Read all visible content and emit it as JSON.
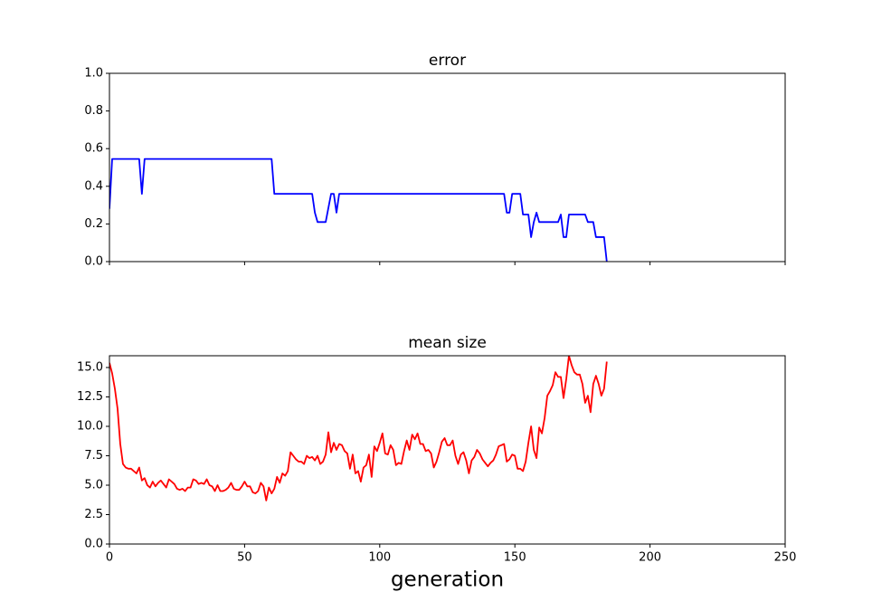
{
  "chart_data": [
    {
      "type": "line",
      "title": "error",
      "x": [
        0,
        1,
        11,
        12,
        13,
        60,
        61,
        75,
        76,
        77,
        80,
        82,
        83,
        84,
        85,
        146,
        147,
        148,
        149,
        152,
        153,
        155,
        156,
        157,
        158,
        159,
        166,
        167,
        168,
        169,
        170,
        176,
        177,
        179,
        180,
        183,
        184
      ],
      "series": [
        {
          "name": "error",
          "color": "#0000ff",
          "values": [
            0.28,
            0.545,
            0.545,
            0.36,
            0.545,
            0.545,
            0.36,
            0.36,
            0.26,
            0.21,
            0.21,
            0.36,
            0.36,
            0.26,
            0.36,
            0.36,
            0.26,
            0.26,
            0.36,
            0.36,
            0.25,
            0.25,
            0.13,
            0.21,
            0.26,
            0.21,
            0.21,
            0.25,
            0.13,
            0.13,
            0.25,
            0.25,
            0.21,
            0.21,
            0.13,
            0.13,
            0.0
          ]
        }
      ],
      "xlim": [
        0,
        250
      ],
      "xticks": [
        0,
        50,
        100,
        150,
        200,
        250
      ],
      "ylim": [
        0,
        1
      ],
      "yticks": [
        {
          "value": 0,
          "label": "0.0"
        },
        {
          "value": 0.2,
          "label": "0.2"
        },
        {
          "value": 0.4,
          "label": "0.4"
        },
        {
          "value": 0.6,
          "label": "0.6"
        },
        {
          "value": 0.8,
          "label": "0.8"
        },
        {
          "value": 1,
          "label": "1.0"
        }
      ]
    },
    {
      "type": "line",
      "title": "mean size",
      "x_label": "generation",
      "x": [
        0,
        1,
        2,
        3,
        4,
        5,
        6,
        7,
        8,
        9,
        10,
        11,
        12,
        13,
        14,
        15,
        16,
        17,
        18,
        19,
        20,
        21,
        22,
        23,
        24,
        25,
        26,
        27,
        28,
        29,
        30,
        31,
        32,
        33,
        34,
        35,
        36,
        37,
        38,
        39,
        40,
        41,
        42,
        43,
        44,
        45,
        46,
        47,
        48,
        49,
        50,
        51,
        52,
        53,
        54,
        55,
        56,
        57,
        58,
        59,
        60,
        61,
        62,
        63,
        64,
        65,
        66,
        67,
        68,
        69,
        70,
        71,
        72,
        73,
        74,
        75,
        76,
        77,
        78,
        79,
        80,
        81,
        82,
        83,
        84,
        85,
        86,
        87,
        88,
        89,
        90,
        91,
        92,
        93,
        94,
        95,
        96,
        97,
        98,
        99,
        100,
        101,
        102,
        103,
        104,
        105,
        106,
        107,
        108,
        109,
        110,
        111,
        112,
        113,
        114,
        115,
        116,
        117,
        118,
        119,
        120,
        121,
        122,
        123,
        124,
        125,
        126,
        127,
        128,
        129,
        130,
        131,
        132,
        133,
        134,
        135,
        136,
        137,
        138,
        139,
        140,
        141,
        142,
        143,
        144,
        145,
        146,
        147,
        148,
        149,
        150,
        151,
        152,
        153,
        154,
        155,
        156,
        157,
        158,
        159,
        160,
        161,
        162,
        163,
        164,
        165,
        166,
        167,
        168,
        169,
        170,
        171,
        172,
        173,
        174,
        175,
        176,
        177,
        178,
        179,
        180,
        181,
        182,
        183,
        184
      ],
      "series": [
        {
          "name": "mean size",
          "color": "#ff0000",
          "values": [
            15.4,
            14.5,
            13.2,
            11.5,
            8.5,
            6.8,
            6.5,
            6.4,
            6.4,
            6.2,
            6.0,
            6.5,
            5.4,
            5.6,
            5.0,
            4.8,
            5.3,
            4.9,
            5.2,
            5.4,
            5.1,
            4.8,
            5.5,
            5.3,
            5.1,
            4.7,
            4.6,
            4.7,
            4.5,
            4.8,
            4.8,
            5.5,
            5.4,
            5.1,
            5.2,
            5.1,
            5.5,
            5.0,
            4.9,
            4.5,
            5.0,
            4.5,
            4.5,
            4.6,
            4.8,
            5.2,
            4.7,
            4.6,
            4.6,
            4.9,
            5.3,
            4.9,
            4.9,
            4.4,
            4.3,
            4.5,
            5.2,
            4.9,
            3.7,
            4.8,
            4.3,
            4.7,
            5.7,
            5.2,
            6.0,
            5.8,
            6.2,
            7.8,
            7.5,
            7.2,
            7.0,
            7.0,
            6.8,
            7.5,
            7.3,
            7.4,
            7.1,
            7.5,
            6.8,
            7.0,
            7.6,
            9.5,
            7.8,
            8.6,
            8.0,
            8.5,
            8.4,
            7.9,
            7.7,
            6.4,
            7.6,
            6.0,
            6.2,
            5.3,
            6.5,
            6.7,
            7.6,
            5.7,
            8.3,
            7.9,
            8.6,
            9.4,
            7.7,
            7.6,
            8.4,
            8.0,
            6.7,
            6.9,
            6.8,
            7.9,
            8.8,
            8.0,
            9.3,
            8.9,
            9.4,
            8.5,
            8.5,
            7.9,
            8.0,
            7.7,
            6.5,
            7.0,
            7.8,
            8.7,
            9.0,
            8.4,
            8.4,
            8.8,
            7.5,
            6.8,
            7.6,
            7.8,
            7.1,
            6.0,
            7.1,
            7.4,
            8.0,
            7.7,
            7.2,
            6.9,
            6.6,
            6.9,
            7.1,
            7.6,
            8.3,
            8.4,
            8.5,
            7.0,
            7.2,
            7.6,
            7.5,
            6.4,
            6.4,
            6.2,
            7.0,
            8.6,
            10.0,
            8.0,
            7.3,
            9.9,
            9.4,
            10.7,
            12.6,
            13.0,
            13.5,
            14.6,
            14.2,
            14.2,
            12.4,
            14.0,
            16.0,
            15.2,
            14.6,
            14.4,
            14.4,
            13.6,
            12.0,
            12.6,
            11.2,
            13.6,
            14.3,
            13.6,
            12.6,
            13.2,
            15.5
          ]
        }
      ],
      "xlim": [
        0,
        250
      ],
      "xticks": [
        0,
        50,
        100,
        150,
        200,
        250
      ],
      "ylim": [
        0,
        16
      ],
      "yticks": [
        {
          "value": 0,
          "label": "0.0"
        },
        {
          "value": 2.5,
          "label": "2.5"
        },
        {
          "value": 5,
          "label": "5.0"
        },
        {
          "value": 7.5,
          "label": "7.5"
        },
        {
          "value": 10,
          "label": "10.0"
        },
        {
          "value": 12.5,
          "label": "12.5"
        },
        {
          "value": 15,
          "label": "15.0"
        }
      ]
    }
  ]
}
